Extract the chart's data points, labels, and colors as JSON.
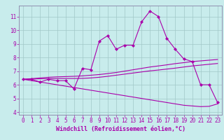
{
  "xlabel": "Windchill (Refroidissement éolien,°C)",
  "background_color": "#c8ecec",
  "grid_color": "#a0c8c8",
  "line_color": "#aa00aa",
  "spine_color": "#9090b0",
  "x": [
    0,
    1,
    2,
    3,
    4,
    5,
    6,
    7,
    8,
    9,
    10,
    11,
    12,
    13,
    14,
    15,
    16,
    17,
    18,
    19,
    20,
    21,
    22,
    23
  ],
  "y_main": [
    6.4,
    6.4,
    6.2,
    6.4,
    6.3,
    6.3,
    5.7,
    7.2,
    7.1,
    9.2,
    9.6,
    8.6,
    8.9,
    8.9,
    10.6,
    11.4,
    11.0,
    9.4,
    8.6,
    7.9,
    7.7,
    6.0,
    6.0,
    4.7
  ],
  "y_line1": [
    6.4,
    6.45,
    6.5,
    6.55,
    6.58,
    6.6,
    6.62,
    6.65,
    6.7,
    6.75,
    6.82,
    6.9,
    7.0,
    7.1,
    7.2,
    7.3,
    7.38,
    7.46,
    7.55,
    7.62,
    7.7,
    7.75,
    7.8,
    7.85
  ],
  "y_line2": [
    6.4,
    6.42,
    6.44,
    6.45,
    6.46,
    6.46,
    6.46,
    6.47,
    6.5,
    6.55,
    6.62,
    6.7,
    6.78,
    6.86,
    6.94,
    7.02,
    7.08,
    7.15,
    7.22,
    7.3,
    7.38,
    7.44,
    7.5,
    7.56
  ],
  "y_line3": [
    6.4,
    6.3,
    6.2,
    6.1,
    6.0,
    5.9,
    5.8,
    5.7,
    5.6,
    5.5,
    5.4,
    5.3,
    5.2,
    5.1,
    5.0,
    4.9,
    4.8,
    4.7,
    4.6,
    4.5,
    4.45,
    4.4,
    4.42,
    4.6
  ],
  "ylim": [
    3.8,
    11.8
  ],
  "yticks": [
    4,
    5,
    6,
    7,
    8,
    9,
    10,
    11
  ],
  "xlim": [
    -0.5,
    23.5
  ],
  "xticks": [
    0,
    1,
    2,
    3,
    4,
    5,
    6,
    7,
    8,
    9,
    10,
    11,
    12,
    13,
    14,
    15,
    16,
    17,
    18,
    19,
    20,
    21,
    22,
    23
  ],
  "tick_fontsize": 5.5,
  "xlabel_fontsize": 6.0
}
